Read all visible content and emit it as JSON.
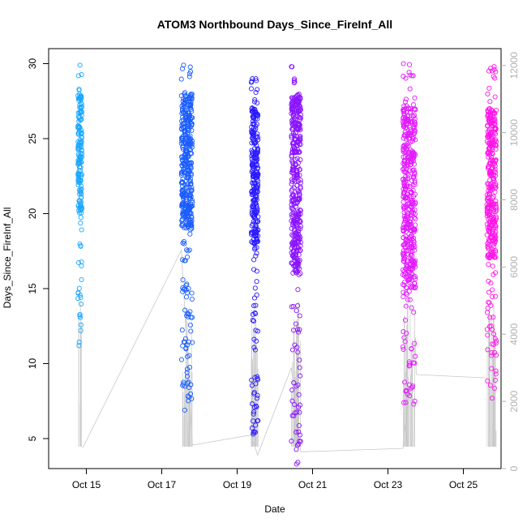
{
  "chart_data": {
    "type": "scatter",
    "title": "ATOM3 Northbound Days_Since_FireInf_All",
    "xlabel": "Date",
    "ylabel": "Days_Since_FireInf_All",
    "x_type": "date",
    "xlim": [
      "2024-10-14",
      "2024-10-26"
    ],
    "ylim": [
      3,
      31
    ],
    "x_ticks": [
      {
        "value": "2024-10-15",
        "label": "Oct 15"
      },
      {
        "value": "2024-10-17",
        "label": "Oct 17"
      },
      {
        "value": "2024-10-19",
        "label": "Oct 19"
      },
      {
        "value": "2024-10-21",
        "label": "Oct 21"
      },
      {
        "value": "2024-10-23",
        "label": "Oct 23"
      },
      {
        "value": "2024-10-25",
        "label": "Oct 25"
      }
    ],
    "y_ticks": [
      5,
      10,
      15,
      20,
      25,
      30
    ],
    "y2_ticks": [
      0,
      2000,
      4000,
      6000,
      8000,
      10000,
      12000
    ],
    "y2lim": [
      0,
      12500
    ],
    "grid": false,
    "legend": "none",
    "colors": {
      "cluster1": "#1aa7ff",
      "cluster2": "#1a5cff",
      "cluster3": "#2a1aff",
      "cluster4": "#8a14ff",
      "cluster5": "#e21aff",
      "cluster6": "#ff14e8",
      "secondary_line": "#c8c8c8",
      "axis": "#000000",
      "axis2_text": "#b0b0b0"
    },
    "series": [
      {
        "cluster": "cluster1",
        "x_start": "2024-10-14 18:40",
        "x_end": "2024-10-14 21:10",
        "y_min": 11.2,
        "y_max": 29.9,
        "count": 180,
        "dense_low": 20,
        "dense_high": 28
      },
      {
        "cluster": "cluster2",
        "x_start": "2024-10-17 12:30",
        "x_end": "2024-10-17 19:30",
        "y_min": 6.9,
        "y_max": 29.9,
        "count": 420,
        "dense_low": 19,
        "dense_high": 28
      },
      {
        "cluster": "cluster3",
        "x_start": "2024-10-19 09:00",
        "x_end": "2024-10-19 13:20",
        "y_min": 5.3,
        "y_max": 29.0,
        "count": 300,
        "dense_low": 18,
        "dense_high": 27
      },
      {
        "cluster": "cluster4",
        "x_start": "2024-10-20 10:30",
        "x_end": "2024-10-20 16:30",
        "y_min": 3.3,
        "y_max": 29.8,
        "count": 420,
        "dense_low": 16,
        "dense_high": 28
      },
      {
        "cluster": "cluster5",
        "x_start": "2024-10-23 09:30",
        "x_end": "2024-10-23 17:30",
        "y_min": 7.3,
        "y_max": 30.0,
        "count": 460,
        "dense_low": 15,
        "dense_high": 27
      },
      {
        "cluster": "cluster6",
        "x_start": "2024-10-25 15:00",
        "x_end": "2024-10-25 21:00",
        "y_min": 7.7,
        "y_max": 29.8,
        "count": 360,
        "dense_low": 17,
        "dense_high": 27
      }
    ],
    "secondary_series": [
      {
        "x": "2024-10-14 21:30",
        "y2": 600
      },
      {
        "x": "2024-10-17 12:30",
        "y2": 6500
      },
      {
        "x": "2024-10-17 19:30",
        "y2": 700
      },
      {
        "x": "2024-10-19 09:00",
        "y2": 1000
      },
      {
        "x": "2024-10-19 13:00",
        "y2": 400
      },
      {
        "x": "2024-10-20 10:30",
        "y2": 3000
      },
      {
        "x": "2024-10-20 16:30",
        "y2": 500
      },
      {
        "x": "2024-10-23 09:30",
        "y2": 600
      },
      {
        "x": "2024-10-23 17:30",
        "y2": 3900
      },
      {
        "x": "2024-10-23 18:00",
        "y2": 2800
      },
      {
        "x": "2024-10-25 14:00",
        "y2": 2700
      }
    ]
  }
}
